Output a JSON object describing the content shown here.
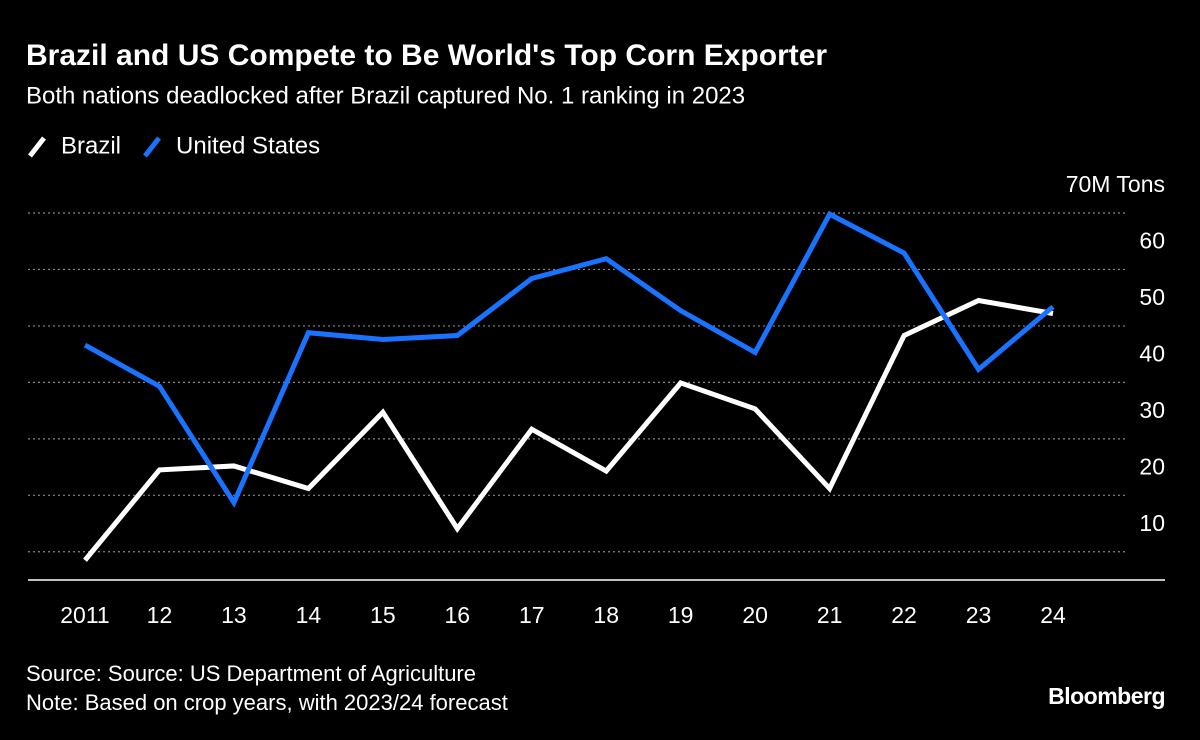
{
  "chart_data": {
    "type": "line",
    "title": "Brazil and US Compete to Be World's Top Corn Exporter",
    "subtitle": "Both nations deadlocked after Brazil captured No. 1 ranking in 2023",
    "categories": [
      "2011",
      "12",
      "13",
      "14",
      "15",
      "16",
      "17",
      "18",
      "19",
      "20",
      "21",
      "22",
      "23",
      "24"
    ],
    "series": [
      {
        "name": "Brazil",
        "color": "#ffffff",
        "values": [
          8.5,
          24.5,
          25.2,
          21.2,
          34.7,
          14.1,
          31.7,
          24.3,
          39.9,
          35.3,
          21.2,
          48.3,
          54.5,
          52.2
        ]
      },
      {
        "name": "United States",
        "color": "#1a73ff",
        "values": [
          46.6,
          39.3,
          18.7,
          48.8,
          47.6,
          48.3,
          58.4,
          61.9,
          52.7,
          45.3,
          69.8,
          62.9,
          42.3,
          53.4
        ]
      }
    ],
    "ylim": [
      5,
      70
    ],
    "yticks": [
      {
        "value": 70,
        "label": "70M Tons"
      },
      60,
      50,
      40,
      30,
      20,
      10
    ],
    "grid": true,
    "source": "Source: Source: US Department of Agriculture",
    "note": "Note: Based on crop years, with 2023/24 forecast",
    "brand": "Bloomberg"
  }
}
